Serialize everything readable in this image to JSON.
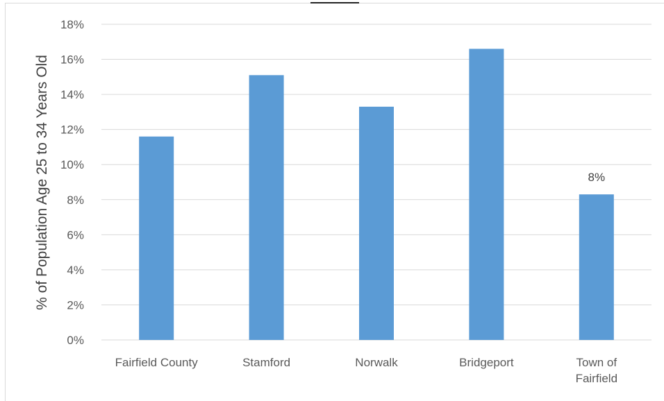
{
  "chart_data": {
    "type": "bar",
    "title": "",
    "xlabel": "",
    "ylabel": "% of Population Age 25 to 34 Years Old",
    "categories": [
      "Fairfield County",
      "Stamford",
      "Norwalk",
      "Bridgeport",
      "Town of Fairfield"
    ],
    "category_lines": [
      [
        "Fairfield County"
      ],
      [
        "Stamford"
      ],
      [
        "Norwalk"
      ],
      [
        "Bridgeport"
      ],
      [
        "Town of",
        "Fairfield"
      ]
    ],
    "values": [
      11.6,
      15.1,
      13.3,
      16.6,
      8.3
    ],
    "data_labels": [
      null,
      null,
      null,
      null,
      "8%"
    ],
    "ylim": [
      0,
      18
    ],
    "yticks": [
      "0%",
      "2%",
      "4%",
      "6%",
      "8%",
      "10%",
      "12%",
      "14%",
      "16%",
      "18%"
    ],
    "grid": true,
    "bar_color": "#5b9bd5",
    "grid_color": "#d9d9d9"
  }
}
